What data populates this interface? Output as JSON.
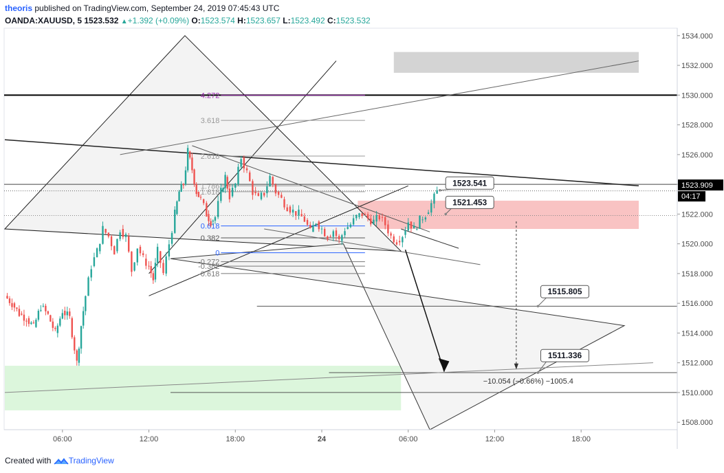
{
  "header": {
    "user": "theoris",
    "published_text": "published on TradingView.com, September 24, 2019 07:45:43 UTC",
    "symbol": "OANDA:XAUUSD, 5",
    "last": "1523.532",
    "change_arrow": "▲",
    "change": "+1.392 (+0.09%)",
    "o_label": "O:",
    "o_value": "1523.574",
    "h_label": "H:",
    "h_value": "1523.657",
    "l_label": "L:",
    "l_value": "1523.492",
    "c_label": "C:",
    "c_value": "1523.532"
  },
  "footer": {
    "created_with": "Created with",
    "brand": "TradingView"
  },
  "colors": {
    "up": "#26a69a",
    "down": "#ef5350",
    "fib": "#2962ff",
    "fib_ext": "#9c27b0",
    "zone_red": "#f8b8b8",
    "zone_green": "#d6f5d6",
    "zone_grey": "#cfcfcf",
    "triangle": "#f3f3f3"
  },
  "chart_data": {
    "type": "candlestick",
    "symbol": "OANDA:XAUUSD",
    "interval": "5",
    "y_axis": {
      "ticks": [
        1508,
        1510,
        1512,
        1514,
        1516,
        1518,
        1520,
        1522,
        1524,
        1526,
        1528,
        1530,
        1532,
        1534
      ],
      "tick_labels": [
        "1508.000",
        "1510.000",
        "1512.000",
        "1514.000",
        "1516.000",
        "1518.000",
        "1520.000",
        "1522.000",
        "1524.000",
        "1526.000",
        "1528.000",
        "1530.000",
        "1532.000",
        "1534.000"
      ],
      "range": [
        1507.5,
        1534.5
      ]
    },
    "x_axis": {
      "range_hours": [
        2.0,
        26.0
      ],
      "tick_labels": [
        {
          "label": "06:00",
          "hour": 6
        },
        {
          "label": "12:00",
          "hour": 12
        },
        {
          "label": "18:00",
          "hour": 18
        },
        {
          "label": "24",
          "hour": 24
        },
        {
          "label": "06:00",
          "hour": 30
        },
        {
          "label": "12:00",
          "hour": 36
        },
        {
          "label": "18:00",
          "hour": 42
        }
      ]
    },
    "price_path": [
      [
        2.0,
        1516.5
      ],
      [
        2.5,
        1516.0
      ],
      [
        3.0,
        1515.3
      ],
      [
        3.5,
        1515.0
      ],
      [
        4.0,
        1514.4
      ],
      [
        4.5,
        1515.8
      ],
      [
        5.0,
        1515.2
      ],
      [
        5.5,
        1514.0
      ],
      [
        6.0,
        1515.5
      ],
      [
        6.5,
        1515.0
      ],
      [
        7.0,
        1512.0
      ],
      [
        7.3,
        1514.5
      ],
      [
        7.6,
        1516.5
      ],
      [
        8.0,
        1518.5
      ],
      [
        8.4,
        1519.5
      ],
      [
        8.8,
        1521.0
      ],
      [
        9.2,
        1520.5
      ],
      [
        9.6,
        1519.5
      ],
      [
        10.0,
        1521.0
      ],
      [
        10.4,
        1520.5
      ],
      [
        10.8,
        1518.2
      ],
      [
        11.2,
        1519.8
      ],
      [
        11.6,
        1519.0
      ],
      [
        12.0,
        1518.5
      ],
      [
        12.3,
        1517.6
      ],
      [
        12.6,
        1519.5
      ],
      [
        13.0,
        1518.0
      ],
      [
        13.4,
        1520.0
      ],
      [
        13.8,
        1522.0
      ],
      [
        14.1,
        1523.5
      ],
      [
        14.4,
        1524.0
      ],
      [
        14.7,
        1526.2
      ],
      [
        15.0,
        1525.0
      ],
      [
        15.3,
        1523.5
      ],
      [
        15.6,
        1523.0
      ],
      [
        16.0,
        1522.0
      ],
      [
        16.3,
        1521.5
      ],
      [
        16.6,
        1521.8
      ],
      [
        17.0,
        1523.5
      ],
      [
        17.3,
        1524.5
      ],
      [
        17.6,
        1523.2
      ],
      [
        18.0,
        1524.0
      ],
      [
        18.4,
        1525.8
      ],
      [
        18.8,
        1524.8
      ],
      [
        19.2,
        1523.5
      ],
      [
        19.6,
        1523.0
      ],
      [
        20.0,
        1523.4
      ],
      [
        20.4,
        1524.5
      ],
      [
        20.8,
        1523.5
      ],
      [
        21.2,
        1523.0
      ],
      [
        21.6,
        1522.5
      ],
      [
        22.0,
        1522.2
      ],
      [
        22.4,
        1522.0
      ],
      [
        22.8,
        1521.6
      ],
      [
        23.2,
        1520.8
      ],
      [
        23.6,
        1521.5
      ],
      [
        24.0,
        1521.0
      ],
      [
        24.4,
        1520.5
      ],
      [
        24.8,
        1520.9
      ],
      [
        25.2,
        1520.2
      ],
      [
        25.6,
        1521.0
      ],
      [
        26.0,
        1521.3
      ],
      [
        26.4,
        1521.8
      ],
      [
        26.8,
        1522.0
      ],
      [
        27.2,
        1521.7
      ],
      [
        27.6,
        1521.5
      ],
      [
        28.0,
        1521.8
      ],
      [
        28.4,
        1521.3
      ],
      [
        28.8,
        1520.5
      ],
      [
        29.2,
        1520.2
      ],
      [
        29.6,
        1520.6
      ],
      [
        30.0,
        1521.5
      ],
      [
        30.4,
        1521.0
      ],
      [
        30.8,
        1521.6
      ],
      [
        31.2,
        1522.0
      ],
      [
        31.6,
        1522.7
      ],
      [
        32.0,
        1523.5
      ]
    ],
    "current_price": {
      "label": "1523.909",
      "value": 1523.909,
      "countdown": "04:17"
    },
    "fib_levels": [
      {
        "label": "4.272",
        "value": 1530.0,
        "color": "#9c27b0"
      },
      {
        "label": "3.618",
        "value": 1528.3,
        "color": "#999999"
      },
      {
        "label": "2.618",
        "value": 1525.9,
        "color": "#999999"
      },
      {
        "label": "1.786",
        "value": 1523.9,
        "color": "#999999"
      },
      {
        "label": "1.618",
        "value": 1523.5,
        "color": "#999999"
      },
      {
        "label": "0.618",
        "value": 1521.2,
        "color": "#2962ff"
      },
      {
        "label": "0.382",
        "value": 1520.4,
        "color": "#555555"
      },
      {
        "label": "0",
        "value": 1519.4,
        "color": "#2962ff"
      },
      {
        "label": "-0.272",
        "value": 1518.8,
        "color": "#777777"
      },
      {
        "label": "-0.382",
        "value": 1518.5,
        "color": "#777777"
      },
      {
        "label": "-0.618",
        "value": 1518.0,
        "color": "#777777"
      }
    ],
    "callouts": [
      {
        "label": "1523.541",
        "value": 1523.541
      },
      {
        "label": "1521.453",
        "value": 1521.453
      },
      {
        "label": "1515.805",
        "value": 1515.805
      },
      {
        "label": "1511.336",
        "value": 1511.336
      }
    ],
    "measurement_label": "−10.054 (−0.66%) −1005.4",
    "horizontal_levels": [
      1530.0,
      1515.805,
      1511.336,
      1510.0
    ],
    "zones": [
      {
        "name": "resistance",
        "from": 1521.0,
        "to": 1522.9,
        "start_hour": 26.5,
        "end_hour": 46.0
      },
      {
        "name": "support",
        "from": 1508.8,
        "to": 1511.8,
        "start_hour": 2.0,
        "end_hour": 29.5
      },
      {
        "name": "upper",
        "from": 1531.5,
        "to": 1532.9,
        "start_hour": 29.0,
        "end_hour": 46.0
      }
    ]
  }
}
